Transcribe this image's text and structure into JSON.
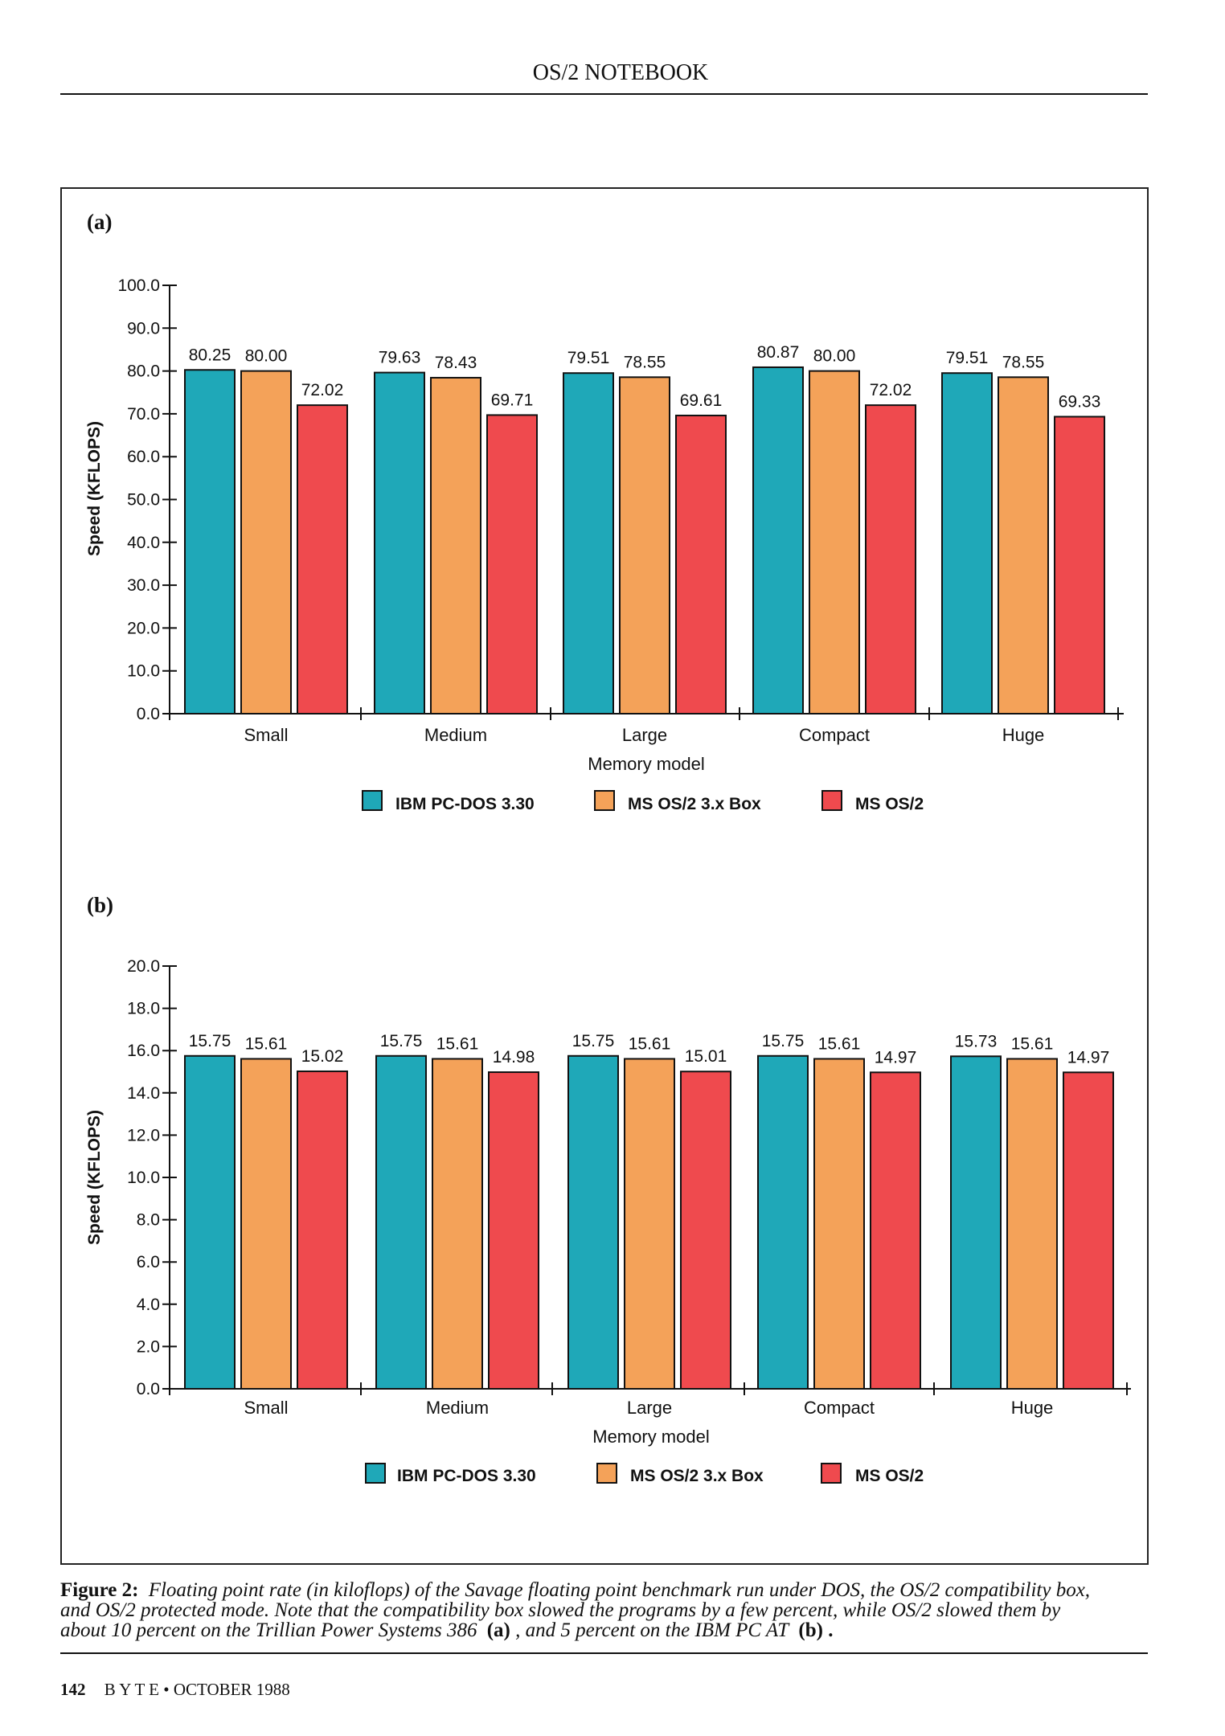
{
  "header": {
    "running_head": "OS/2 NOTEBOOK"
  },
  "legend": [
    {
      "name": "IBM PC-DOS 3.30",
      "color": "#1fa8b8"
    },
    {
      "name": "MS OS/2 3.x Box",
      "color": "#f4a259"
    },
    {
      "name": "MS OS/2",
      "color": "#ef4a4e"
    }
  ],
  "chart_data": [
    {
      "type": "bar",
      "panel_label": "(a)",
      "categories": [
        "Small",
        "Medium",
        "Large",
        "Compact",
        "Huge"
      ],
      "series": [
        {
          "name": "IBM PC-DOS 3.30",
          "values": [
            80.25,
            79.63,
            79.51,
            80.87,
            79.51
          ]
        },
        {
          "name": "MS OS/2 3.x Box",
          "values": [
            80.0,
            78.43,
            78.55,
            80.0,
            78.55
          ]
        },
        {
          "name": "MS OS/2",
          "values": [
            72.02,
            69.71,
            69.61,
            72.02,
            69.33
          ]
        }
      ],
      "data_labels": [
        [
          "80.25",
          "79.63",
          "79.51",
          "80.87",
          "79.51"
        ],
        [
          "80.00",
          "78.43",
          "78.55",
          "80.00",
          "78.55"
        ],
        [
          "72.02",
          "69.71",
          "69.61",
          "72.02",
          "69.33"
        ]
      ],
      "ylim": [
        0,
        100
      ],
      "yticks": [
        "0.0",
        "10.0",
        "20.0",
        "30.0",
        "40.0",
        "50.0",
        "60.0",
        "70.0",
        "80.0",
        "90.0",
        "100.0"
      ],
      "ylabel": "Speed (KFLOPS)",
      "xlabel": "Memory model",
      "grid": false,
      "legend_position": "bottom"
    },
    {
      "type": "bar",
      "panel_label": "(b)",
      "categories": [
        "Small",
        "Medium",
        "Large",
        "Compact",
        "Huge"
      ],
      "series": [
        {
          "name": "IBM PC-DOS 3.30",
          "values": [
            15.75,
            15.75,
            15.75,
            15.75,
            15.73
          ]
        },
        {
          "name": "MS OS/2 3.x Box",
          "values": [
            15.61,
            15.61,
            15.61,
            15.61,
            15.61
          ]
        },
        {
          "name": "MS OS/2",
          "values": [
            15.02,
            14.98,
            15.01,
            14.97,
            14.97
          ]
        }
      ],
      "data_labels": [
        [
          "15.75",
          "15.75",
          "15.75",
          "15.75",
          "15.73"
        ],
        [
          "15.61",
          "15.61",
          "15.61",
          "15.61",
          "15.61"
        ],
        [
          "15.02",
          "14.98",
          "15.01",
          "14.97",
          "14.97"
        ]
      ],
      "ylim": [
        0,
        20
      ],
      "yticks": [
        "0.0",
        "2.0",
        "4.0",
        "6.0",
        "8.0",
        "10.0",
        "12.0",
        "14.0",
        "16.0",
        "18.0",
        "20.0"
      ],
      "ylabel": "Speed (KFLOPS)",
      "xlabel": "Memory model",
      "grid": false,
      "legend_position": "bottom"
    }
  ],
  "caption": {
    "label": "Figure 2:",
    "line1": "Floating point rate (in kiloflops) of the Savage floating point benchmark run under DOS, the OS/2 compatibility box,",
    "line2": "and OS/2 protected mode. Note that the compatibility box slowed the programs by a few percent, while OS/2 slowed them by",
    "line3a": "about 10 percent on the Trillian Power Systems 386",
    "line3b": "(a)",
    "line3c": ", and 5 percent on the IBM PC AT",
    "line3d": "(b)",
    "line3e": "."
  },
  "footer": {
    "page_number": "142",
    "magazine": "B Y T E  •  OCTOBER 1988"
  }
}
